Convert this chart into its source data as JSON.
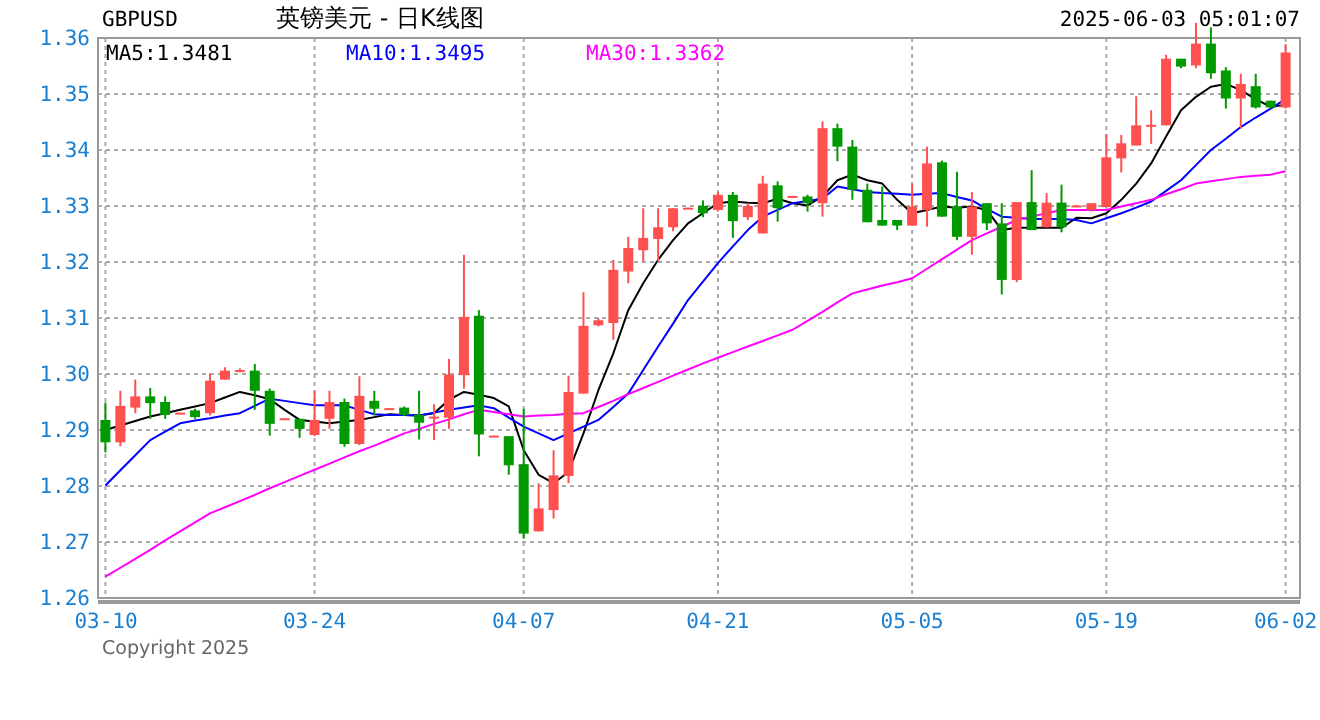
{
  "chart_data": {
    "type": "candlestick",
    "title": "英镑美元 - 日K线图",
    "subtitle": "GBPUSD",
    "annotations": [
      "2025-06-03 05:01:07",
      "Copyright 2025"
    ],
    "categories": [
      "03-10",
      null,
      null,
      null,
      null,
      null,
      null,
      null,
      null,
      null,
      null,
      null,
      null,
      null,
      "03-24",
      null,
      null,
      null,
      null,
      null,
      null,
      null,
      null,
      null,
      null,
      null,
      null,
      null,
      "04-07",
      null,
      null,
      null,
      null,
      null,
      null,
      null,
      null,
      null,
      null,
      null,
      null,
      "04-21",
      null,
      null,
      null,
      null,
      null,
      null,
      null,
      null,
      null,
      null,
      null,
      null,
      "05-05",
      null,
      null,
      null,
      null,
      null,
      null,
      null,
      null,
      null,
      null,
      null,
      null,
      "05-19",
      null,
      null,
      null,
      null,
      null,
      null,
      null,
      null,
      null,
      null,
      null,
      "06-02"
    ],
    "ohlc": [
      [
        1.2918,
        1.2949,
        1.286,
        1.2878
      ],
      [
        1.2878,
        1.297,
        1.2871,
        1.2943
      ],
      [
        1.294,
        1.299,
        1.293,
        1.296
      ],
      [
        1.296,
        1.2975,
        1.292,
        1.2948
      ],
      [
        1.295,
        1.296,
        1.292,
        1.2927
      ],
      [
        1.2929,
        1.2931,
        1.2929,
        1.2931
      ],
      [
        1.2935,
        1.2938,
        1.292,
        1.2923
      ],
      [
        1.293,
        1.3001,
        1.2926,
        1.2988
      ],
      [
        1.299,
        1.3012,
        1.299,
        1.3006
      ],
      [
        1.3005,
        1.301,
        1.3003,
        1.3007
      ],
      [
        1.3006,
        1.3018,
        1.2936,
        1.297
      ],
      [
        1.297,
        1.2974,
        1.289,
        1.2911
      ],
      [
        1.2919,
        1.2921,
        1.2919,
        1.2921
      ],
      [
        1.292,
        1.292,
        1.2886,
        1.2902
      ],
      [
        1.2891,
        1.297,
        1.2889,
        1.2918
      ],
      [
        1.292,
        1.297,
        1.2902,
        1.295
      ],
      [
        1.295,
        1.2956,
        1.287,
        1.2875
      ],
      [
        1.2875,
        1.2996,
        1.2873,
        1.2961
      ],
      [
        1.2952,
        1.297,
        1.2926,
        1.2938
      ],
      [
        1.2937,
        1.2939,
        1.2937,
        1.2939
      ],
      [
        1.294,
        1.2942,
        1.2925,
        1.2927
      ],
      [
        1.2927,
        1.297,
        1.2883,
        1.2913
      ],
      [
        1.2922,
        1.2946,
        1.2882,
        1.2924
      ],
      [
        1.2922,
        1.3027,
        1.2902,
        1.2999
      ],
      [
        1.2998,
        1.3213,
        1.2974,
        1.3102
      ],
      [
        1.3104,
        1.3114,
        1.2853,
        1.2892
      ],
      [
        1.2888,
        1.289,
        1.2888,
        1.289
      ],
      [
        1.2889,
        1.2889,
        1.282,
        1.2837
      ],
      [
        1.2839,
        1.2938,
        1.2706,
        1.2715
      ],
      [
        1.2719,
        1.2805,
        1.2719,
        1.276
      ],
      [
        1.2757,
        1.2864,
        1.2742,
        1.2819
      ],
      [
        1.2818,
        1.2997,
        1.2805,
        1.2968
      ],
      [
        1.2965,
        1.3146,
        1.2965,
        1.3086
      ],
      [
        1.3087,
        1.31,
        1.3085,
        1.3096
      ],
      [
        1.3091,
        1.3204,
        1.3061,
        1.3186
      ],
      [
        1.3183,
        1.3245,
        1.3162,
        1.3225
      ],
      [
        1.3221,
        1.3296,
        1.3201,
        1.3243
      ],
      [
        1.3241,
        1.3296,
        1.3201,
        1.3262
      ],
      [
        1.3262,
        1.3296,
        1.3255,
        1.3296
      ],
      [
        1.3295,
        1.3297,
        1.3295,
        1.3297
      ],
      [
        1.33,
        1.331,
        1.328,
        1.3287
      ],
      [
        1.3293,
        1.3325,
        1.329,
        1.332
      ],
      [
        1.332,
        1.3325,
        1.3243,
        1.3273
      ],
      [
        1.328,
        1.3305,
        1.3275,
        1.33
      ],
      [
        1.3251,
        1.3354,
        1.3251,
        1.334
      ],
      [
        1.3337,
        1.3344,
        1.3272,
        1.3296
      ],
      [
        1.3316,
        1.3318,
        1.3316,
        1.3318
      ],
      [
        1.3317,
        1.332,
        1.329,
        1.3305
      ],
      [
        1.3305,
        1.3451,
        1.3281,
        1.3439
      ],
      [
        1.3439,
        1.3447,
        1.338,
        1.3406
      ],
      [
        1.3406,
        1.3418,
        1.3311,
        1.3329
      ],
      [
        1.3329,
        1.334,
        1.3271,
        1.3271
      ],
      [
        1.3275,
        1.3335,
        1.3265,
        1.3265
      ],
      [
        1.3275,
        1.3275,
        1.3257,
        1.3265
      ],
      [
        1.3265,
        1.334,
        1.3265,
        1.3299
      ],
      [
        1.3293,
        1.3406,
        1.3263,
        1.3376
      ],
      [
        1.3378,
        1.3381,
        1.3281,
        1.3281
      ],
      [
        1.3299,
        1.3361,
        1.3239,
        1.3245
      ],
      [
        1.3245,
        1.3325,
        1.3213,
        1.3299
      ],
      [
        1.3305,
        1.3305,
        1.3257,
        1.3269
      ],
      [
        1.3269,
        1.3305,
        1.3142,
        1.3168
      ],
      [
        1.3168,
        1.3307,
        1.3164,
        1.3307
      ],
      [
        1.3307,
        1.3364,
        1.3257,
        1.3257
      ],
      [
        1.3262,
        1.3323,
        1.3262,
        1.3306
      ],
      [
        1.3306,
        1.3338,
        1.3253,
        1.3262
      ],
      [
        1.3299,
        1.3301,
        1.3299,
        1.3301
      ],
      [
        1.3293,
        1.3305,
        1.329,
        1.3305
      ],
      [
        1.3298,
        1.3428,
        1.3298,
        1.3387
      ],
      [
        1.3385,
        1.3427,
        1.336,
        1.3412
      ],
      [
        1.3408,
        1.3496,
        1.3408,
        1.3444
      ],
      [
        1.3443,
        1.3471,
        1.3411,
        1.3445
      ],
      [
        1.3444,
        1.357,
        1.3444,
        1.3563
      ],
      [
        1.3563,
        1.3563,
        1.3546,
        1.3549
      ],
      [
        1.3551,
        1.3627,
        1.3546,
        1.359
      ],
      [
        1.359,
        1.3619,
        1.3527,
        1.3537
      ],
      [
        1.3542,
        1.3548,
        1.3474,
        1.3492
      ],
      [
        1.3492,
        1.3536,
        1.3438,
        1.3518
      ],
      [
        1.3514,
        1.3536,
        1.3474,
        1.3476
      ],
      [
        1.3488,
        1.3488,
        1.3474,
        1.3476
      ],
      [
        1.3476,
        1.3589,
        1.3474,
        1.3574
      ]
    ],
    "colors": [
      "#009900",
      "#ff5050",
      "#ff5050",
      "#009900",
      "#009900",
      "#ff5050",
      "#009900",
      "#ff5050",
      "#ff5050",
      "#ff5050",
      "#009900",
      "#009900",
      "#ff5050",
      "#009900",
      "#ff5050",
      "#ff5050",
      "#009900",
      "#ff5050",
      "#009900",
      "#ff5050",
      "#009900",
      "#009900",
      "#ff5050",
      "#ff5050",
      "#ff5050",
      "#009900",
      "#ff5050",
      "#009900",
      "#009900",
      "#ff5050",
      "#ff5050",
      "#ff5050",
      "#ff5050",
      "#ff5050",
      "#ff5050",
      "#ff5050",
      "#ff5050",
      "#ff5050",
      "#ff5050",
      "#ff5050",
      "#009900",
      "#ff5050",
      "#009900",
      "#ff5050",
      "#ff5050",
      "#009900",
      "#ff5050",
      "#009900",
      "#ff5050",
      "#009900",
      "#009900",
      "#009900",
      "#009900",
      "#009900",
      "#ff5050",
      "#ff5050",
      "#009900",
      "#009900",
      "#ff5050",
      "#009900",
      "#009900",
      "#ff5050",
      "#009900",
      "#ff5050",
      "#009900",
      "#ff5050",
      "#ff5050",
      "#ff5050",
      "#ff5050",
      "#ff5050",
      "#ff5050",
      "#ff5050",
      "#009900",
      "#ff5050",
      "#009900",
      "#009900",
      "#ff5050",
      "#009900",
      "#009900",
      "#ff5050"
    ],
    "series": [
      {
        "type": "line",
        "name": "MA5:1.3481",
        "color": "#000000",
        "values": [
          1.29,
          1.2908,
          1.2916,
          1.2924,
          1.293,
          1.2936,
          1.2942,
          1.2948,
          1.2958,
          1.2968,
          1.2962,
          1.2955,
          1.2936,
          1.2918,
          1.2915,
          1.2912,
          1.2915,
          1.2918,
          1.2923,
          1.2928,
          1.2927,
          1.2926,
          1.293,
          1.2954,
          1.2968,
          1.2963,
          1.2957,
          1.2942,
          1.2864,
          1.282,
          1.2805,
          1.2825,
          1.2894,
          1.2971,
          1.3037,
          1.3114,
          1.3162,
          1.3204,
          1.3239,
          1.3269,
          1.3287,
          1.3305,
          1.3308,
          1.3306,
          1.3305,
          1.3313,
          1.3305,
          1.3301,
          1.3317,
          1.3346,
          1.3356,
          1.3346,
          1.334,
          1.3311,
          1.3287,
          1.3293,
          1.3299,
          1.3297,
          1.3299,
          1.3293,
          1.3257,
          1.3261,
          1.3261,
          1.3261,
          1.3261,
          1.3279,
          1.3278,
          1.3287,
          1.3311,
          1.334,
          1.3376,
          1.3424,
          1.3471,
          1.3495,
          1.3513,
          1.3518,
          1.3507,
          1.3491,
          1.3477,
          1.3481
        ]
      },
      {
        "type": "line",
        "name": "MA10:1.3495",
        "color": "#0000ff",
        "values": [
          1.2801,
          1.2828,
          1.2855,
          1.2882,
          1.2897,
          1.2912,
          1.2917,
          1.2921,
          1.2926,
          1.293,
          1.2943,
          1.2956,
          1.2952,
          1.2948,
          1.2944,
          1.2944,
          1.2944,
          1.2936,
          1.2928,
          1.2927,
          1.2927,
          1.2926,
          1.2931,
          1.2936,
          1.294,
          1.2944,
          1.2939,
          1.2922,
          1.2906,
          1.2894,
          1.2882,
          1.2894,
          1.2906,
          1.2918,
          1.2941,
          1.2965,
          1.3007,
          1.3049,
          1.309,
          1.3132,
          1.3165,
          1.3198,
          1.3228,
          1.3257,
          1.3281,
          1.3293,
          1.3305,
          1.3309,
          1.3313,
          1.3335,
          1.333,
          1.3325,
          1.3323,
          1.3322,
          1.332,
          1.3322,
          1.3323,
          1.3316,
          1.331,
          1.3295,
          1.3281,
          1.3279,
          1.3277,
          1.3277,
          1.3277,
          1.3275,
          1.3269,
          1.3278,
          1.3287,
          1.3297,
          1.3308,
          1.3327,
          1.3346,
          1.3373,
          1.34,
          1.342,
          1.3441,
          1.3458,
          1.3474,
          1.3491
        ]
      },
      {
        "type": "line",
        "name": "MA30:1.3362",
        "color": "#ff00ff",
        "values": [
          1.2638,
          1.2654,
          1.267,
          1.2686,
          1.2703,
          1.2719,
          1.2735,
          1.2751,
          1.2762,
          1.2773,
          1.2784,
          1.2796,
          1.2807,
          1.2818,
          1.2829,
          1.284,
          1.2851,
          1.2862,
          1.2872,
          1.2883,
          1.2894,
          1.2902,
          1.2911,
          1.2919,
          1.2928,
          1.2936,
          1.2932,
          1.2928,
          1.2924,
          1.2926,
          1.2927,
          1.2929,
          1.293,
          1.2941,
          1.2952,
          1.2964,
          1.2975,
          1.2986,
          1.2997,
          1.3008,
          1.3019,
          1.3029,
          1.3039,
          1.3049,
          1.3059,
          1.3069,
          1.3079,
          1.3095,
          1.3111,
          1.3128,
          1.3144,
          1.3151,
          1.3158,
          1.3164,
          1.3171,
          1.3188,
          1.3205,
          1.3222,
          1.3239,
          1.3251,
          1.3263,
          1.3275,
          1.3281,
          1.3287,
          1.3293,
          1.3293,
          1.3293,
          1.3293,
          1.3299,
          1.3305,
          1.3311,
          1.3321,
          1.333,
          1.334,
          1.3344,
          1.3348,
          1.3352,
          1.3354,
          1.3356,
          1.3362
        ]
      }
    ],
    "ylim": [
      1.26,
      1.36
    ],
    "yticks": [
      {
        "value": 1.26,
        "label": "1.26"
      },
      {
        "value": 1.27,
        "label": "1.27"
      },
      {
        "value": 1.28,
        "label": "1.28"
      },
      {
        "value": 1.29,
        "label": "1.29"
      },
      {
        "value": 1.3,
        "label": "1.30"
      },
      {
        "value": 1.31,
        "label": "1.31"
      },
      {
        "value": 1.32,
        "label": "1.32"
      },
      {
        "value": 1.33,
        "label": "1.33"
      },
      {
        "value": 1.34,
        "label": "1.34"
      },
      {
        "value": 1.35,
        "label": "1.35"
      },
      {
        "value": 1.36,
        "label": "1.36"
      }
    ],
    "grid": true,
    "legend": "top left"
  }
}
